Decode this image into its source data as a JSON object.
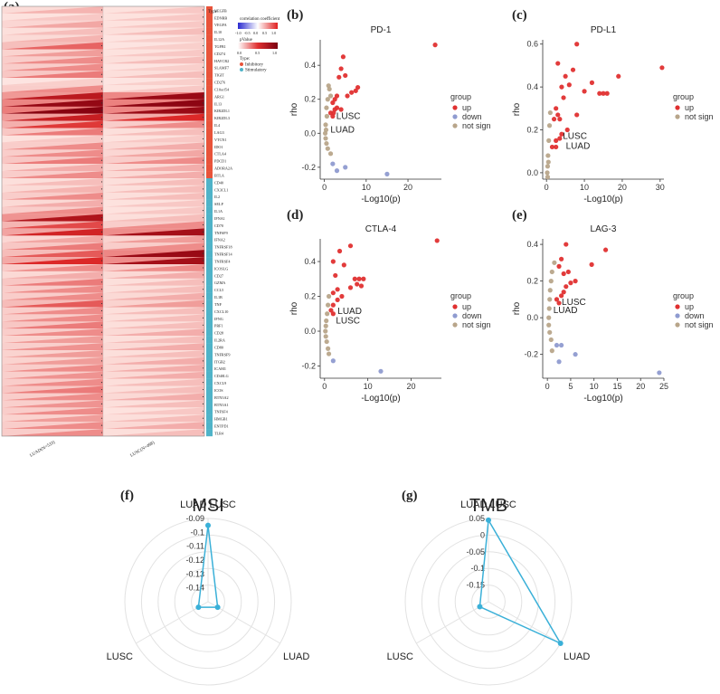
{
  "panels": {
    "a": "(a)",
    "b": "(b)",
    "c": "(c)",
    "d": "(d)",
    "e": "(e)",
    "f": "(f)",
    "g": "(g)"
  },
  "heatmap": {
    "type_header": "Type",
    "columns": [
      "LUAD(N=533)",
      "LUSC(N=498)"
    ],
    "legend": {
      "corr_title": "correlation coefficient",
      "corr_ticks": [
        "-1.0",
        "-0.5",
        "0.0",
        "0.5",
        "1.0"
      ],
      "p_title": "pValue",
      "p_ticks": [
        "0.0",
        "0.5",
        "1.0"
      ],
      "type_title": "Type:",
      "type_inhibitory": "Inhibitory",
      "type_stimulatory": "Stimulatory",
      "inhibitory_color": "#e8533a",
      "stimulatory_color": "#4fb3c8"
    },
    "genes": [
      "VEGFB",
      "EDNRB",
      "VEGFA",
      "IL10",
      "IL12A",
      "TGFB1",
      "CD274",
      "HAVCR2",
      "SLAMF7",
      "TIGIT",
      "CD276",
      "C10orf54",
      "ARG1",
      "IL13",
      "KIR2DL1",
      "KIR2DL3",
      "IL4",
      "LAG3",
      "VTCN1",
      "IDO1",
      "CTLA4",
      "PDCD1",
      "ADORA2A",
      "BTLA",
      "CD40",
      "CX3CL1",
      "IL2",
      "SELP",
      "IL1A",
      "IFNA1",
      "CD70",
      "TNFSF9",
      "IFNA2",
      "TNFRSF18",
      "TNFRSF14",
      "TNFRSF4",
      "ICOSLG",
      "CD27",
      "GZMA",
      "CCL5",
      "IL1B",
      "TNF",
      "CXCL10",
      "IFNG",
      "PRF1",
      "CD28",
      "IL2RA",
      "CD80",
      "TNFRSF9",
      "ITGB2",
      "ICAM1",
      "CD40LG",
      "CXCL9",
      "ICOS",
      "BTN3A2",
      "BTN3A1",
      "TNFSF4",
      "HMGB1",
      "ENTPD1",
      "TLR4"
    ],
    "gene_types": [
      "I",
      "I",
      "I",
      "I",
      "I",
      "I",
      "I",
      "I",
      "I",
      "I",
      "I",
      "I",
      "I",
      "I",
      "I",
      "I",
      "I",
      "I",
      "I",
      "I",
      "I",
      "I",
      "I",
      "I",
      "S",
      "S",
      "S",
      "S",
      "S",
      "S",
      "S",
      "S",
      "S",
      "S",
      "S",
      "S",
      "S",
      "S",
      "S",
      "S",
      "S",
      "S",
      "S",
      "S",
      "S",
      "S",
      "S",
      "S",
      "S",
      "S",
      "S",
      "S",
      "S",
      "S",
      "S",
      "S",
      "S",
      "S",
      "S",
      "S"
    ],
    "luad_corr": [
      0.18,
      0.12,
      0.22,
      0.15,
      0.18,
      0.42,
      0.25,
      0.3,
      0.3,
      0.35,
      0.1,
      0.3,
      0.75,
      0.92,
      0.98,
      0.7,
      0.55,
      0.35,
      0.12,
      0.3,
      0.3,
      0.35,
      0.2,
      0.3,
      0.15,
      0.18,
      0.3,
      0.2,
      0.3,
      0.8,
      0.5,
      0.65,
      0.22,
      0.35,
      0.45,
      0.6,
      0.3,
      0.2,
      0.35,
      0.3,
      0.3,
      0.45,
      0.3,
      0.3,
      0.35,
      0.3,
      0.25,
      0.28,
      0.25,
      0.25,
      0.3,
      0.28,
      0.3,
      0.35,
      0.3,
      0.28,
      0.3,
      0.25,
      0.3,
      0.3
    ],
    "lusc_corr": [
      0.12,
      0.12,
      0.12,
      0.15,
      0.1,
      0.1,
      0.12,
      0.15,
      0.1,
      0.15,
      0.1,
      0.12,
      0.9,
      0.95,
      0.9,
      0.6,
      0.3,
      0.15,
      0.12,
      0.2,
      0.22,
      0.3,
      0.2,
      0.2,
      0.15,
      0.15,
      0.15,
      0.12,
      0.12,
      0.15,
      0.3,
      0.85,
      0.25,
      0.3,
      0.9,
      0.85,
      0.3,
      0.2,
      0.15,
      0.15,
      0.2,
      0.25,
      0.15,
      0.15,
      0.15,
      0.2,
      0.15,
      0.2,
      0.15,
      0.2,
      0.2,
      0.2,
      0.15,
      0.15,
      0.2,
      0.15,
      0.12,
      0.15,
      0.2,
      0.15
    ]
  },
  "scatter_legend": {
    "title": "group",
    "up": "up",
    "down": "down",
    "not_sign": "not sign",
    "up_color": "#e03030",
    "down_color": "#8f9bd0",
    "not_sign_color": "#b8a58a"
  },
  "chart_data": [
    {
      "id": "b",
      "type": "scatter",
      "title": "PD-1",
      "xlabel": "-Log10(p)",
      "ylabel": "rho",
      "xlim": [
        -1,
        28
      ],
      "ylim": [
        -0.27,
        0.55
      ],
      "xticks": [
        0,
        10,
        20
      ],
      "yticks": [
        -0.2,
        0.0,
        0.2,
        0.4
      ],
      "annotations": [
        {
          "text": "LUSC",
          "x": 2.2,
          "y": 0.1
        },
        {
          "text": "LUAD",
          "x": 0.8,
          "y": 0.02
        }
      ],
      "legend_groups": [
        "up",
        "down",
        "not sign"
      ],
      "points": [
        [
          26.5,
          0.52,
          "up"
        ],
        [
          4.5,
          0.45,
          "up"
        ],
        [
          4.0,
          0.38,
          "up"
        ],
        [
          3.5,
          0.33,
          "up"
        ],
        [
          5.0,
          0.34,
          "up"
        ],
        [
          8.0,
          0.27,
          "up"
        ],
        [
          7.5,
          0.25,
          "up"
        ],
        [
          6.5,
          0.24,
          "up"
        ],
        [
          5.5,
          0.22,
          "up"
        ],
        [
          3.0,
          0.22,
          "up"
        ],
        [
          2.5,
          0.2,
          "up"
        ],
        [
          2.0,
          0.18,
          "up"
        ],
        [
          3.0,
          0.15,
          "up"
        ],
        [
          2.5,
          0.14,
          "up"
        ],
        [
          2.2,
          0.12,
          "up"
        ],
        [
          4.0,
          0.14,
          "up"
        ],
        [
          1.5,
          0.12,
          "up"
        ],
        [
          2.0,
          0.1,
          "up"
        ],
        [
          1.0,
          0.28,
          "not sign"
        ],
        [
          1.2,
          0.26,
          "not sign"
        ],
        [
          1.5,
          0.22,
          "not sign"
        ],
        [
          0.8,
          0.2,
          "not sign"
        ],
        [
          0.5,
          0.15,
          "not sign"
        ],
        [
          0.6,
          0.1,
          "not sign"
        ],
        [
          0.3,
          0.05,
          "not sign"
        ],
        [
          0.4,
          0.02,
          "not sign"
        ],
        [
          0.2,
          0.0,
          "not sign"
        ],
        [
          0.3,
          -0.03,
          "not sign"
        ],
        [
          0.5,
          -0.06,
          "not sign"
        ],
        [
          0.8,
          -0.09,
          "not sign"
        ],
        [
          1.5,
          -0.12,
          "not sign"
        ],
        [
          15.0,
          -0.24,
          "down"
        ],
        [
          5.0,
          -0.2,
          "down"
        ],
        [
          3.0,
          -0.22,
          "down"
        ],
        [
          2.0,
          -0.18,
          "down"
        ]
      ]
    },
    {
      "id": "c",
      "type": "scatter",
      "title": "PD-L1",
      "xlabel": "-Log10(p)",
      "ylabel": "rho",
      "xlim": [
        -1,
        31
      ],
      "ylim": [
        -0.03,
        0.62
      ],
      "xticks": [
        0,
        10,
        20,
        30
      ],
      "yticks": [
        0.0,
        0.2,
        0.4,
        0.6
      ],
      "annotations": [
        {
          "text": "LUSC",
          "x": 3.6,
          "y": 0.17
        },
        {
          "text": "LUAD",
          "x": 4.4,
          "y": 0.125
        }
      ],
      "legend_groups": [
        "up",
        "not sign"
      ],
      "points": [
        [
          30.5,
          0.49,
          "up"
        ],
        [
          8.0,
          0.6,
          "up"
        ],
        [
          3.0,
          0.51,
          "up"
        ],
        [
          7.0,
          0.48,
          "up"
        ],
        [
          19.0,
          0.45,
          "up"
        ],
        [
          5.0,
          0.45,
          "up"
        ],
        [
          12.0,
          0.42,
          "up"
        ],
        [
          4.0,
          0.4,
          "up"
        ],
        [
          6.0,
          0.41,
          "up"
        ],
        [
          10.0,
          0.38,
          "up"
        ],
        [
          14.0,
          0.37,
          "up"
        ],
        [
          15.0,
          0.37,
          "up"
        ],
        [
          16.0,
          0.37,
          "up"
        ],
        [
          4.5,
          0.35,
          "up"
        ],
        [
          2.5,
          0.3,
          "up"
        ],
        [
          8.0,
          0.27,
          "up"
        ],
        [
          3.0,
          0.27,
          "up"
        ],
        [
          2.0,
          0.25,
          "up"
        ],
        [
          3.5,
          0.25,
          "up"
        ],
        [
          5.5,
          0.2,
          "up"
        ],
        [
          4.0,
          0.18,
          "up"
        ],
        [
          3.5,
          0.16,
          "up"
        ],
        [
          2.5,
          0.15,
          "up"
        ],
        [
          1.5,
          0.12,
          "up"
        ],
        [
          2.5,
          0.12,
          "up"
        ],
        [
          1.0,
          0.28,
          "not sign"
        ],
        [
          0.8,
          0.22,
          "not sign"
        ],
        [
          0.6,
          0.15,
          "not sign"
        ],
        [
          0.4,
          0.08,
          "not sign"
        ],
        [
          0.3,
          0.03,
          "not sign"
        ],
        [
          0.2,
          0.0,
          "not sign"
        ],
        [
          0.3,
          -0.02,
          "not sign"
        ],
        [
          0.5,
          0.05,
          "not sign"
        ]
      ]
    },
    {
      "id": "d",
      "type": "scatter",
      "title": "CTLA-4",
      "xlabel": "-Log10(p)",
      "ylabel": "rho",
      "xlim": [
        -1,
        27
      ],
      "ylim": [
        -0.27,
        0.53
      ],
      "xticks": [
        0,
        10,
        20
      ],
      "yticks": [
        -0.2,
        0.0,
        0.2,
        0.4
      ],
      "annotations": [
        {
          "text": "LUAD",
          "x": 2.4,
          "y": 0.115
        },
        {
          "text": "LUSC",
          "x": 2.0,
          "y": 0.06
        }
      ],
      "legend_groups": [
        "up",
        "down",
        "not sign"
      ],
      "points": [
        [
          26.0,
          0.52,
          "up"
        ],
        [
          6.0,
          0.49,
          "up"
        ],
        [
          3.5,
          0.46,
          "up"
        ],
        [
          2.0,
          0.4,
          "up"
        ],
        [
          4.5,
          0.38,
          "up"
        ],
        [
          2.5,
          0.32,
          "up"
        ],
        [
          7.0,
          0.3,
          "up"
        ],
        [
          8.0,
          0.3,
          "up"
        ],
        [
          9.0,
          0.3,
          "up"
        ],
        [
          7.5,
          0.27,
          "up"
        ],
        [
          8.5,
          0.26,
          "up"
        ],
        [
          6.0,
          0.25,
          "up"
        ],
        [
          3.0,
          0.24,
          "up"
        ],
        [
          2.0,
          0.22,
          "up"
        ],
        [
          4.0,
          0.2,
          "up"
        ],
        [
          3.0,
          0.18,
          "up"
        ],
        [
          2.0,
          0.15,
          "up"
        ],
        [
          1.5,
          0.12,
          "up"
        ],
        [
          2.0,
          0.1,
          "up"
        ],
        [
          1.0,
          0.2,
          "not sign"
        ],
        [
          0.8,
          0.15,
          "not sign"
        ],
        [
          0.6,
          0.1,
          "not sign"
        ],
        [
          0.4,
          0.06,
          "not sign"
        ],
        [
          0.3,
          0.03,
          "not sign"
        ],
        [
          0.2,
          0.0,
          "not sign"
        ],
        [
          0.3,
          -0.03,
          "not sign"
        ],
        [
          0.5,
          -0.06,
          "not sign"
        ],
        [
          0.8,
          -0.1,
          "not sign"
        ],
        [
          1.0,
          -0.13,
          "not sign"
        ],
        [
          13.0,
          -0.23,
          "down"
        ],
        [
          2.0,
          -0.17,
          "down"
        ]
      ]
    },
    {
      "id": "e",
      "type": "scatter",
      "title": "LAG-3",
      "xlabel": "-Log10(p)",
      "ylabel": "rho",
      "xlim": [
        -1,
        25
      ],
      "ylim": [
        -0.33,
        0.43
      ],
      "xticks": [
        0,
        5,
        10,
        15,
        20,
        25
      ],
      "yticks": [
        -0.2,
        0.0,
        0.2,
        0.4
      ],
      "annotations": [
        {
          "text": "LUSC",
          "x": 2.5,
          "y": 0.085
        },
        {
          "text": "LUAD",
          "x": 0.7,
          "y": 0.04
        }
      ],
      "legend_groups": [
        "up",
        "down",
        "not sign"
      ],
      "points": [
        [
          12.5,
          0.37,
          "up"
        ],
        [
          4.0,
          0.4,
          "up"
        ],
        [
          9.5,
          0.29,
          "up"
        ],
        [
          3.0,
          0.32,
          "up"
        ],
        [
          2.5,
          0.28,
          "up"
        ],
        [
          4.5,
          0.25,
          "up"
        ],
        [
          3.5,
          0.24,
          "up"
        ],
        [
          6.0,
          0.2,
          "up"
        ],
        [
          5.0,
          0.19,
          "up"
        ],
        [
          4.0,
          0.17,
          "up"
        ],
        [
          3.5,
          0.14,
          "up"
        ],
        [
          3.0,
          0.12,
          "up"
        ],
        [
          2.0,
          0.1,
          "up"
        ],
        [
          2.5,
          0.08,
          "up"
        ],
        [
          1.5,
          0.3,
          "not sign"
        ],
        [
          1.0,
          0.25,
          "not sign"
        ],
        [
          0.8,
          0.2,
          "not sign"
        ],
        [
          0.6,
          0.15,
          "not sign"
        ],
        [
          0.5,
          0.1,
          "not sign"
        ],
        [
          0.4,
          0.05,
          "not sign"
        ],
        [
          0.3,
          0.0,
          "not sign"
        ],
        [
          0.3,
          -0.04,
          "not sign"
        ],
        [
          0.5,
          -0.08,
          "not sign"
        ],
        [
          0.8,
          -0.12,
          "not sign"
        ],
        [
          1.0,
          -0.18,
          "not sign"
        ],
        [
          24.0,
          -0.3,
          "down"
        ],
        [
          6.0,
          -0.2,
          "down"
        ],
        [
          3.0,
          -0.15,
          "down"
        ],
        [
          2.0,
          -0.15,
          "down"
        ],
        [
          2.5,
          -0.24,
          "down"
        ]
      ]
    },
    {
      "id": "f",
      "type": "radar",
      "title": "MSI",
      "axes": [
        "LUAD LUSC",
        "LUAD",
        "LUSC"
      ],
      "values": [
        -0.095,
        -0.142,
        -0.142
      ],
      "r_range": [
        -0.15,
        -0.09
      ],
      "ring_labels": [
        "-0.09",
        "-0.1",
        "-0.11",
        "-0.12",
        "-0.13",
        "-0.14"
      ],
      "ring_values": [
        -0.09,
        -0.1,
        -0.11,
        -0.12,
        -0.13,
        -0.14
      ],
      "line_color": "#3ab0d8"
    },
    {
      "id": "g",
      "type": "radar",
      "title": "TMB",
      "axes": [
        "LUAD LUSC",
        "LUAD",
        "LUSC"
      ],
      "values": [
        0.045,
        0.05,
        -0.17
      ],
      "r_range": [
        -0.2,
        0.05
      ],
      "ring_labels": [
        "0.05",
        "0",
        "-0.05",
        "-0.1",
        "-0.15"
      ],
      "ring_values": [
        0.05,
        0.0,
        -0.05,
        -0.1,
        -0.15
      ],
      "line_color": "#3ab0d8"
    }
  ]
}
